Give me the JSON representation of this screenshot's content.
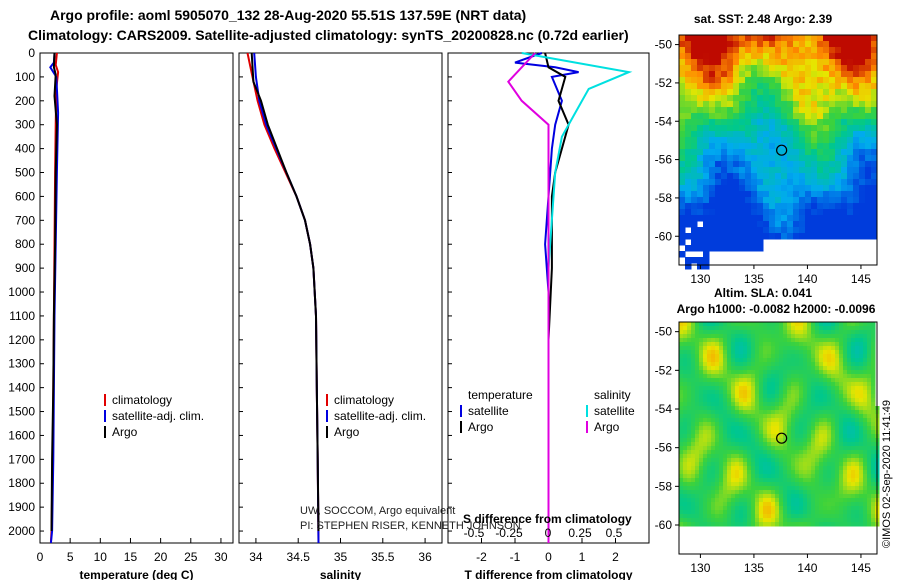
{
  "header": {
    "line1": "Argo profile: aoml 5905070_132 28-Aug-2020 55.51S 137.59E (NRT data)",
    "line2": "Climatology: CARS2009. Satellite-adjusted climatology: synTS_20200828.nc (0.72d earlier)"
  },
  "colors": {
    "climatology": "#e00000",
    "satellite": "#0000e0",
    "argo": "#000000",
    "satellite_salinity": "#00e0e0",
    "argo_salinity": "#e000e0"
  },
  "credits": {
    "line1": "UW, SOCCOM, Argo equivalent",
    "line2": "PI: STEPHEN RISER, KENNETH JOHNSON"
  },
  "timestamp": "©IMOS 02-Sep-2020 11:41:49",
  "chart_data": [
    {
      "id": "temperature",
      "type": "line",
      "xlabel": "temperature (deg C)",
      "ylabel": "",
      "xlim": [
        0,
        32
      ],
      "ylim": [
        2050,
        0
      ],
      "xticks": [
        "0",
        "5",
        "10",
        "15",
        "20",
        "25",
        "30"
      ],
      "xtick_values": [
        0,
        5,
        10,
        15,
        20,
        25,
        30
      ],
      "yticks": [
        "0",
        "100",
        "200",
        "300",
        "400",
        "500",
        "600",
        "700",
        "800",
        "900",
        "1000",
        "1100",
        "1200",
        "1300",
        "1400",
        "1500",
        "1600",
        "1700",
        "1800",
        "1900",
        "2000"
      ],
      "ytick_values": [
        0,
        100,
        200,
        300,
        400,
        500,
        600,
        700,
        800,
        900,
        1000,
        1100,
        1200,
        1300,
        1400,
        1500,
        1600,
        1700,
        1800,
        1900,
        2000
      ],
      "legend": [
        "climatology",
        "satellite-adj. clim.",
        "Argo"
      ],
      "series": [
        {
          "name": "climatology",
          "color": "#e00000",
          "x": [
            2.8,
            2.6,
            3.0,
            2.7,
            2.6,
            2.5,
            2.4,
            2.3,
            2.2,
            2.1,
            1.9,
            1.8
          ],
          "y": [
            0,
            50,
            80,
            150,
            300,
            500,
            800,
            1100,
            1400,
            1700,
            2000,
            2050
          ]
        },
        {
          "name": "satellite-adj. clim.",
          "color": "#0000e0",
          "x": [
            2.4,
            2.3,
            1.7,
            2.7,
            3.0,
            2.8,
            2.6,
            2.4,
            2.3,
            2.2,
            2.0,
            1.8
          ],
          "y": [
            0,
            40,
            60,
            100,
            250,
            500,
            800,
            1100,
            1400,
            1700,
            2000,
            2050
          ]
        },
        {
          "name": "Argo",
          "color": "#000000",
          "x": [
            2.4,
            2.3,
            2.6,
            2.4,
            2.8,
            2.6,
            2.5,
            2.3,
            2.2,
            2.0,
            1.9
          ],
          "y": [
            0,
            60,
            90,
            180,
            300,
            500,
            800,
            1100,
            1400,
            1700,
            2000
          ]
        }
      ]
    },
    {
      "id": "salinity",
      "type": "line",
      "xlabel": "salinity",
      "xlim": [
        33.8,
        36.2
      ],
      "ylim": [
        2050,
        0
      ],
      "xticks": [
        "34",
        "34.5",
        "35",
        "35.5",
        "36"
      ],
      "xtick_values": [
        34,
        34.5,
        35,
        35.5,
        36
      ],
      "legend": [
        "climatology",
        "satellite-adj. clim.",
        "Argo"
      ],
      "series": [
        {
          "name": "climatology",
          "color": "#e00000",
          "x": [
            33.9,
            33.96,
            34.02,
            34.1,
            34.22,
            34.35,
            34.48,
            34.58,
            34.64,
            34.68,
            34.71,
            34.72,
            34.73,
            34.74
          ],
          "y": [
            0,
            100,
            200,
            300,
            400,
            500,
            600,
            700,
            800,
            900,
            1100,
            1400,
            1700,
            2050
          ]
        },
        {
          "name": "satellite-adj. clim.",
          "color": "#0000e0",
          "x": [
            33.98,
            34.0,
            34.04,
            34.12,
            34.24,
            34.36,
            34.48,
            34.58,
            34.64,
            34.68,
            34.71,
            34.72,
            34.73,
            34.74
          ],
          "y": [
            0,
            100,
            200,
            300,
            400,
            500,
            600,
            700,
            800,
            900,
            1100,
            1400,
            1700,
            2050
          ]
        },
        {
          "name": "Argo",
          "color": "#000000",
          "x": [
            33.95,
            33.97,
            34.06,
            34.14,
            34.25,
            34.36,
            34.48,
            34.58,
            34.64,
            34.68,
            34.71,
            34.72,
            34.73,
            34.74
          ],
          "y": [
            0,
            120,
            200,
            300,
            400,
            500,
            600,
            700,
            800,
            900,
            1100,
            1400,
            1700,
            2000
          ]
        }
      ]
    },
    {
      "id": "difference",
      "type": "line",
      "xlabel": "T difference from climatology",
      "xlabel2": "S difference from climatology",
      "xlim": [
        -3,
        3
      ],
      "ylim": [
        2050,
        0
      ],
      "xticks": [
        "-2",
        "-1",
        "0",
        "1",
        "2"
      ],
      "xtick_values": [
        -2,
        -1,
        0,
        1,
        2
      ],
      "xticks_salinity": [
        "-0.5",
        "-0.25",
        "0",
        "0.25",
        "0.5"
      ],
      "legend_temperature_title": "temperature",
      "legend_salinity_title": "salinity",
      "legend_temperature": [
        "satellite",
        "Argo"
      ],
      "legend_salinity": [
        "satellite",
        "Argo"
      ],
      "series": [
        {
          "name": "T satellite",
          "color": "#0000e0",
          "x": [
            -0.2,
            -1.0,
            0.2,
            0.9,
            0.1,
            0.4,
            0.2,
            0.1,
            0.0,
            -0.1,
            0.0,
            0.0,
            0.0
          ],
          "y": [
            0,
            40,
            60,
            80,
            100,
            200,
            300,
            400,
            600,
            800,
            1000,
            1500,
            2050
          ]
        },
        {
          "name": "T Argo",
          "color": "#000000",
          "x": [
            -0.1,
            0.0,
            0.5,
            0.3,
            0.6,
            0.4,
            0.2,
            0.1,
            0.1,
            0.0,
            0.0,
            0.0
          ],
          "y": [
            0,
            60,
            100,
            200,
            300,
            400,
            500,
            600,
            900,
            1200,
            1600,
            2000
          ]
        },
        {
          "name": "S satellite",
          "color": "#00e0e0",
          "x": [
            -0.2,
            0.6,
            0.3,
            0.2,
            0.1,
            0.05,
            0.0,
            0.0
          ],
          "y": [
            0,
            80,
            150,
            250,
            350,
            500,
            900,
            2000
          ]
        },
        {
          "name": "S Argo",
          "color": "#e000e0",
          "x": [
            -0.1,
            -0.3,
            -0.2,
            0.0,
            0.0,
            0.0,
            0.0,
            0.0
          ],
          "y": [
            0,
            120,
            200,
            300,
            400,
            600,
            1000,
            2050
          ]
        }
      ]
    },
    {
      "id": "sst-map",
      "type": "heatmap",
      "title": "sat. SST: 2.48 Argo: 2.39",
      "xticks": [
        "130",
        "135",
        "140",
        "145"
      ],
      "xtick_values": [
        130,
        135,
        140,
        145
      ],
      "yticks": [
        "-50",
        "-52",
        "-54",
        "-56",
        "-58",
        "-60"
      ],
      "ytick_values": [
        -50,
        -52,
        -54,
        -56,
        -58,
        -60
      ],
      "xlim": [
        128,
        146.5
      ],
      "ylim": [
        -61.5,
        -49.5
      ],
      "marker": {
        "lon": 137.59,
        "lat": -55.51
      }
    },
    {
      "id": "sla-map",
      "type": "heatmap",
      "title": "Altim. SLA: 0.041",
      "subtitle": "Argo h1000: -0.0082 h2000: -0.0096",
      "xticks": [
        "130",
        "135",
        "140",
        "145"
      ],
      "xtick_values": [
        130,
        135,
        140,
        145
      ],
      "yticks": [
        "-50",
        "-52",
        "-54",
        "-56",
        "-58",
        "-60"
      ],
      "ytick_values": [
        -50,
        -52,
        -54,
        -56,
        -58,
        -60
      ],
      "xlim": [
        128,
        146.5
      ],
      "ylim": [
        -61.5,
        -49.5
      ],
      "marker": {
        "lon": 137.59,
        "lat": -55.51
      }
    }
  ]
}
